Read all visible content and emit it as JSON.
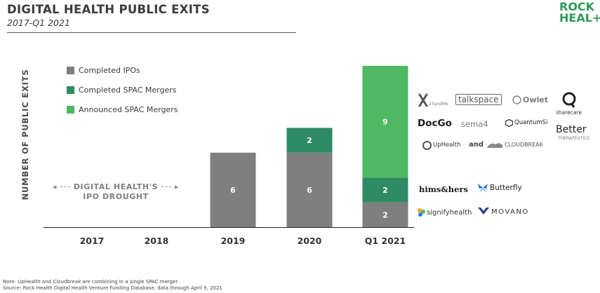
{
  "header": {
    "title": "DIGITAL HEALTH PUBLIC EXITS",
    "subtitle": "2017-Q1 2021",
    "logo_line1": "ROCK",
    "logo_line2": "HEAL+H"
  },
  "chart_data": {
    "type": "bar",
    "stacked": true,
    "categories": [
      "2017",
      "2018",
      "2019",
      "2020",
      "Q1 2021"
    ],
    "ylabel": "NUMBER OF PUBLIC EXITS",
    "ylim": [
      0,
      13
    ],
    "series": [
      {
        "name": "Completed IPOs",
        "color": "#7f7f7f",
        "values": [
          0,
          0,
          6,
          6,
          2
        ]
      },
      {
        "name": "Completed SPAC Mergers",
        "color": "#2e8b63",
        "values": [
          0,
          0,
          0,
          2,
          2
        ]
      },
      {
        "name": "Announced SPAC Mergers",
        "color": "#4fb862",
        "values": [
          0,
          0,
          0,
          0,
          9
        ]
      }
    ],
    "legend_placement": "top-left",
    "grid": false,
    "annotation_line1": "DIGITAL HEALTH'S",
    "annotation_line2": "IPO DROUGHT"
  },
  "companies": {
    "announced": [
      "23andMe",
      "talkspace",
      "Owlet",
      "sharecare",
      "DocGo",
      "sema4",
      "QuantumSi",
      "Better",
      "THERAPEUTICS",
      "UpHealth",
      "and",
      "CLOUDBREAK"
    ],
    "completed_spac": [
      "hims&hers",
      "Butterfly"
    ],
    "ipo": [
      "signifyhealth",
      "MOVANO"
    ]
  },
  "notes": {
    "note": "Note: UpHealth and Cloudbreak are combining in a single SPAC merger",
    "source": "Source: Rock Health Digital Health Venture Funding Database, data through April 9, 2021"
  }
}
